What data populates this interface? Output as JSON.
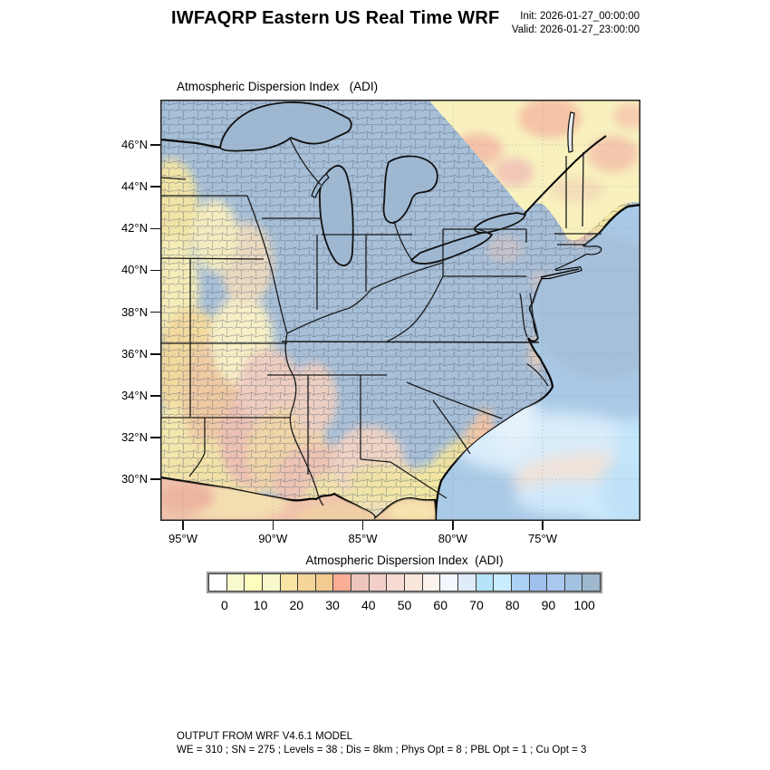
{
  "header": {
    "title": "IWFAQRP Eastern US Real Time WRF",
    "init_label": "Init: 2026-01-27_00:00:00",
    "valid_label": "Valid: 2026-01-27_23:00:00"
  },
  "map": {
    "field_label": "Atmospheric Dispersion Index   (ADI)",
    "palette": {
      "land_high_adi": "#a7bfd7",
      "lake": "#9fb8d2",
      "ocean": "#a9c9e6",
      "ocean_bright": "#c2e5fa",
      "canada_low_adi": "#f8f1be",
      "low_adi_yellow": "#f4e7ae",
      "mid_adi_orange": "#f1cd96",
      "mid_adi_salmon": "#f5bfa2",
      "mid_adi_pink": "#edc2b6",
      "border": "#000000"
    }
  },
  "axes": {
    "lat_labels": [
      "46°N",
      "44°N",
      "42°N",
      "40°N",
      "38°N",
      "36°N",
      "34°N",
      "32°N",
      "30°N"
    ],
    "lon_labels": [
      "95°W",
      "90°W",
      "85°W",
      "80°W",
      "75°W"
    ]
  },
  "colorbar": {
    "title": "Atmospheric Dispersion Index  (ADI)",
    "tick_labels": [
      "0",
      "10",
      "20",
      "30",
      "40",
      "50",
      "60",
      "70",
      "80",
      "90",
      "100"
    ],
    "units_per_cell": 5,
    "cell_colors": [
      "#ffffff",
      "#f9f9ce",
      "#fdfdbe",
      "#f8f8cc",
      "#f8e5a4",
      "#f6d59a",
      "#f2cb90",
      "#faae96",
      "#eec5bd",
      "#f2cfc8",
      "#f6dad3",
      "#fae7dc",
      "#fdf3ed",
      "#f4f6fd",
      "#dfebf8",
      "#b4e3fa",
      "#c8edfe",
      "#abd1f4",
      "#9fc0ed",
      "#a9c8f0",
      "#a3c1e1",
      "#9eb8ce"
    ]
  },
  "footer": {
    "line1": "OUTPUT FROM WRF V4.6.1 MODEL",
    "line2": "WE = 310 ; SN = 275 ; Levels = 38 ; Dis = 8km ; Phys Opt = 8 ; PBL Opt = 1 ; Cu Opt = 3"
  }
}
